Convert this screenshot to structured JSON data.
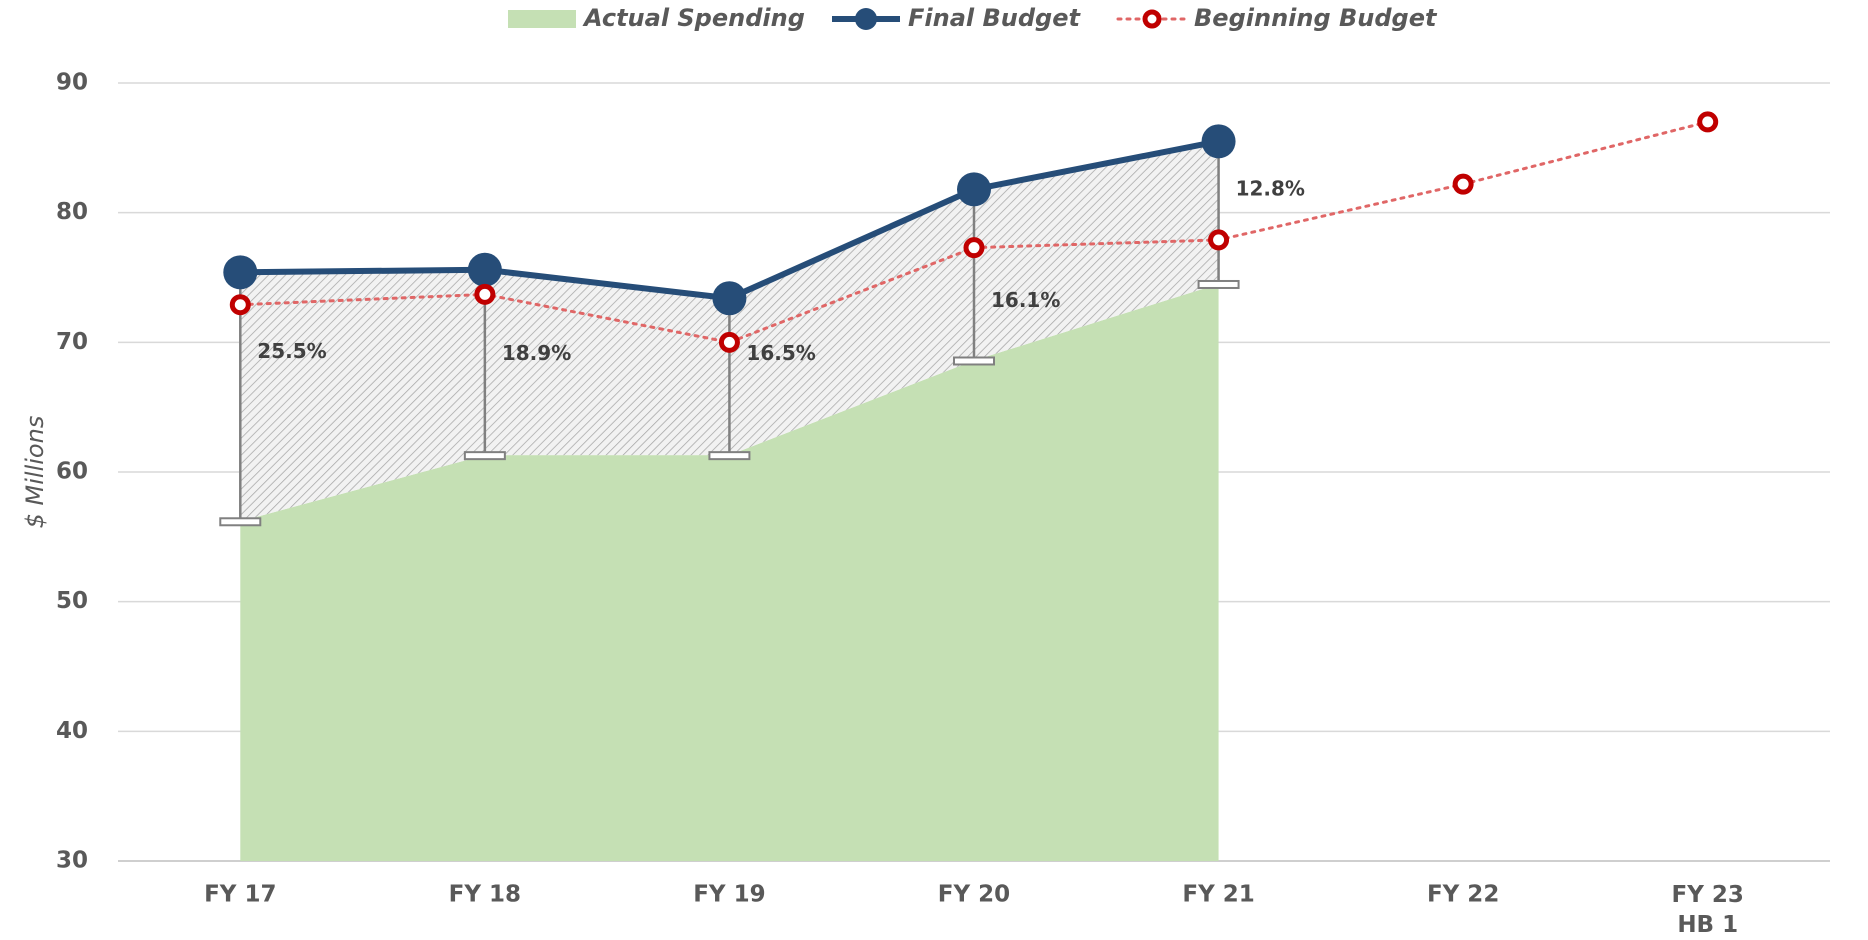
{
  "chart_data": {
    "type": "line",
    "y_label": "$ Millions",
    "categories": [
      "FY 17",
      "FY 18",
      "FY 19",
      "FY 20",
      "FY 21",
      "FY 22",
      "FY 23\nHB 1"
    ],
    "series": [
      {
        "name": "Actual Spending",
        "kind": "area",
        "color": "#c5e0b4",
        "values": [
          56.2,
          61.3,
          61.3,
          68.6,
          74.5,
          null,
          null
        ]
      },
      {
        "name": "Final Budget",
        "kind": "line",
        "color": "#264d78",
        "values": [
          75.4,
          75.6,
          73.4,
          81.8,
          85.5,
          null,
          null
        ]
      },
      {
        "name": "Beginning Budget",
        "kind": "dotted",
        "color": "#c00000",
        "values": [
          72.9,
          73.7,
          70.0,
          77.3,
          77.9,
          82.2,
          87.0
        ]
      }
    ],
    "annotations": [
      "25.5%",
      "18.9%",
      "16.5%",
      "16.1%",
      "12.8%"
    ],
    "ylim": [
      30,
      90
    ],
    "yticks": [
      30,
      40,
      50,
      60,
      70,
      80,
      90
    ],
    "grid": true
  }
}
